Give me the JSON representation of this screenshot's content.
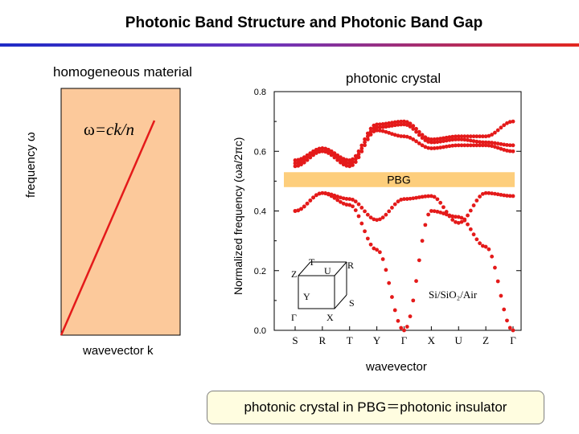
{
  "title": "Photonic Band Structure and Photonic Band Gap",
  "colors": {
    "accent_left": "#1e2bc6",
    "accent_right": "#e3271f",
    "panel_fill": "#fcc99b",
    "band_red": "#e41a1a",
    "gap_band": "#fdce7c"
  },
  "left_panel": {
    "heading": "homogeneous material",
    "ylabel": "frequency ω",
    "xlabel": "wavevector k",
    "formula_omega": "ω",
    "formula_rest": "=ck/n"
  },
  "right_panel": {
    "heading": "photonic crystal",
    "ylabel": "Normalized frequency (ωa/2πc)",
    "xlabel": "wavevector",
    "gap_label": "PBG",
    "material": "Si/SiO₂/Air",
    "bz_labels": [
      "T",
      "R",
      "Z",
      "U",
      "Y",
      "S",
      "Γ",
      "X"
    ]
  },
  "footer_note": "photonic crystal in PBG＝photonic insulator",
  "chart_data": [
    {
      "type": "line",
      "title": "homogeneous material",
      "xlabel": "wavevector k",
      "ylabel": "frequency ω",
      "annotation": "ω=ck/n",
      "x": [
        0,
        1
      ],
      "y": [
        0,
        1
      ]
    },
    {
      "type": "scatter",
      "title": "photonic crystal",
      "xlabel": "wavevector",
      "ylabel": "Normalized frequency (ωa/2πc)",
      "ylim": [
        0,
        0.8
      ],
      "yticks": [
        "0.0",
        "0.2",
        "0.4",
        "0.6",
        "0.8"
      ],
      "categories": [
        "S",
        "R",
        "T",
        "Y",
        "Γ",
        "X",
        "U",
        "Z",
        "Γ"
      ],
      "gap": {
        "label": "PBG",
        "range": [
          0.48,
          0.53
        ]
      },
      "series": [
        {
          "values": [
            0.4,
            0.46,
            0.42,
            0.27,
            0.0,
            0.4,
            0.38,
            0.28,
            0.0
          ]
        },
        {
          "values": [
            0.4,
            0.46,
            0.44,
            0.37,
            0.44,
            0.45,
            0.36,
            0.46,
            0.45
          ]
        },
        {
          "values": [
            0.55,
            0.6,
            0.55,
            0.67,
            0.65,
            0.61,
            0.62,
            0.62,
            0.6
          ]
        },
        {
          "values": [
            0.56,
            0.61,
            0.56,
            0.68,
            0.69,
            0.63,
            0.64,
            0.63,
            0.62
          ]
        },
        {
          "values": [
            0.57,
            0.61,
            0.57,
            0.69,
            0.7,
            0.64,
            0.65,
            0.65,
            0.7
          ]
        }
      ]
    }
  ]
}
